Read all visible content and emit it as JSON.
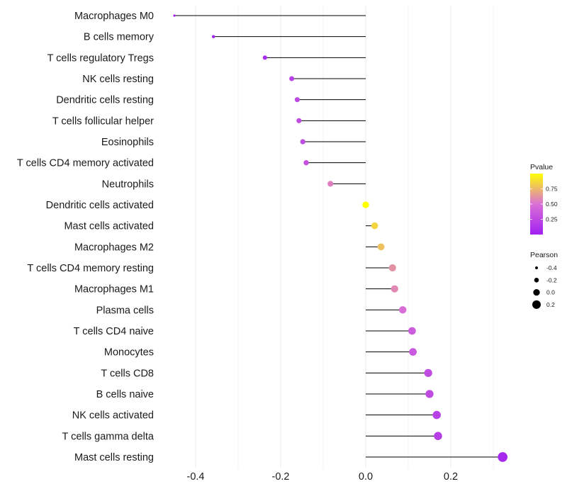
{
  "chart_data": {
    "type": "lollipop",
    "title": "",
    "xlabel": "",
    "ylabel": "",
    "xlim": [
      -0.45,
      0.33
    ],
    "x_ticks": [
      -0.4,
      -0.2,
      0.0,
      0.2
    ],
    "x_tick_labels": [
      "-0.4",
      "-0.2",
      "0.0",
      "0.2"
    ],
    "grid": true,
    "categories": [
      "Macrophages M0",
      "B cells memory",
      "T cells regulatory  Tregs",
      "NK cells resting",
      "Dendritic cells resting",
      "T cells follicular helper",
      "Eosinophils",
      "T cells CD4 memory activated",
      "Neutrophils",
      "Dendritic cells activated",
      "Mast cells activated",
      "Macrophages M2",
      "T cells CD4 memory resting",
      "Macrophages M1",
      "Plasma cells",
      "T cells CD4 naive",
      "Monocytes",
      "T cells CD8",
      "B cells naive",
      "NK cells activated",
      "T cells gamma delta",
      "Mast cells resting"
    ],
    "pearson": [
      -0.45,
      -0.358,
      -0.237,
      -0.174,
      -0.161,
      -0.157,
      -0.148,
      -0.14,
      -0.083,
      0.0,
      0.021,
      0.036,
      0.063,
      0.068,
      0.087,
      0.109,
      0.111,
      0.147,
      0.15,
      0.167,
      0.17,
      0.322
    ],
    "pvalue": [
      0.0,
      0.02,
      0.08,
      0.2,
      0.25,
      0.27,
      0.28,
      0.3,
      0.55,
      1.0,
      0.85,
      0.78,
      0.62,
      0.58,
      0.48,
      0.38,
      0.36,
      0.27,
      0.26,
      0.2,
      0.19,
      0.05
    ],
    "legend": {
      "color": {
        "title": "Pvalue",
        "ticks": [
          0.25,
          0.5,
          0.75
        ],
        "tick_labels": [
          "0.25",
          "0.50",
          "0.75"
        ],
        "range": [
          0.0,
          1.0
        ],
        "low_color": "#A020F0",
        "mid_color": "#DA70D6",
        "high_color": "#FFFF00"
      },
      "size": {
        "title": "Pearson",
        "values": [
          -0.4,
          -0.2,
          0.0,
          0.2
        ],
        "labels": [
          "-0.4",
          "-0.2",
          "0.0",
          "0.2"
        ]
      },
      "position": "right"
    },
    "colors": {
      "stem": "#000000",
      "grid": "#ebebeb"
    }
  }
}
